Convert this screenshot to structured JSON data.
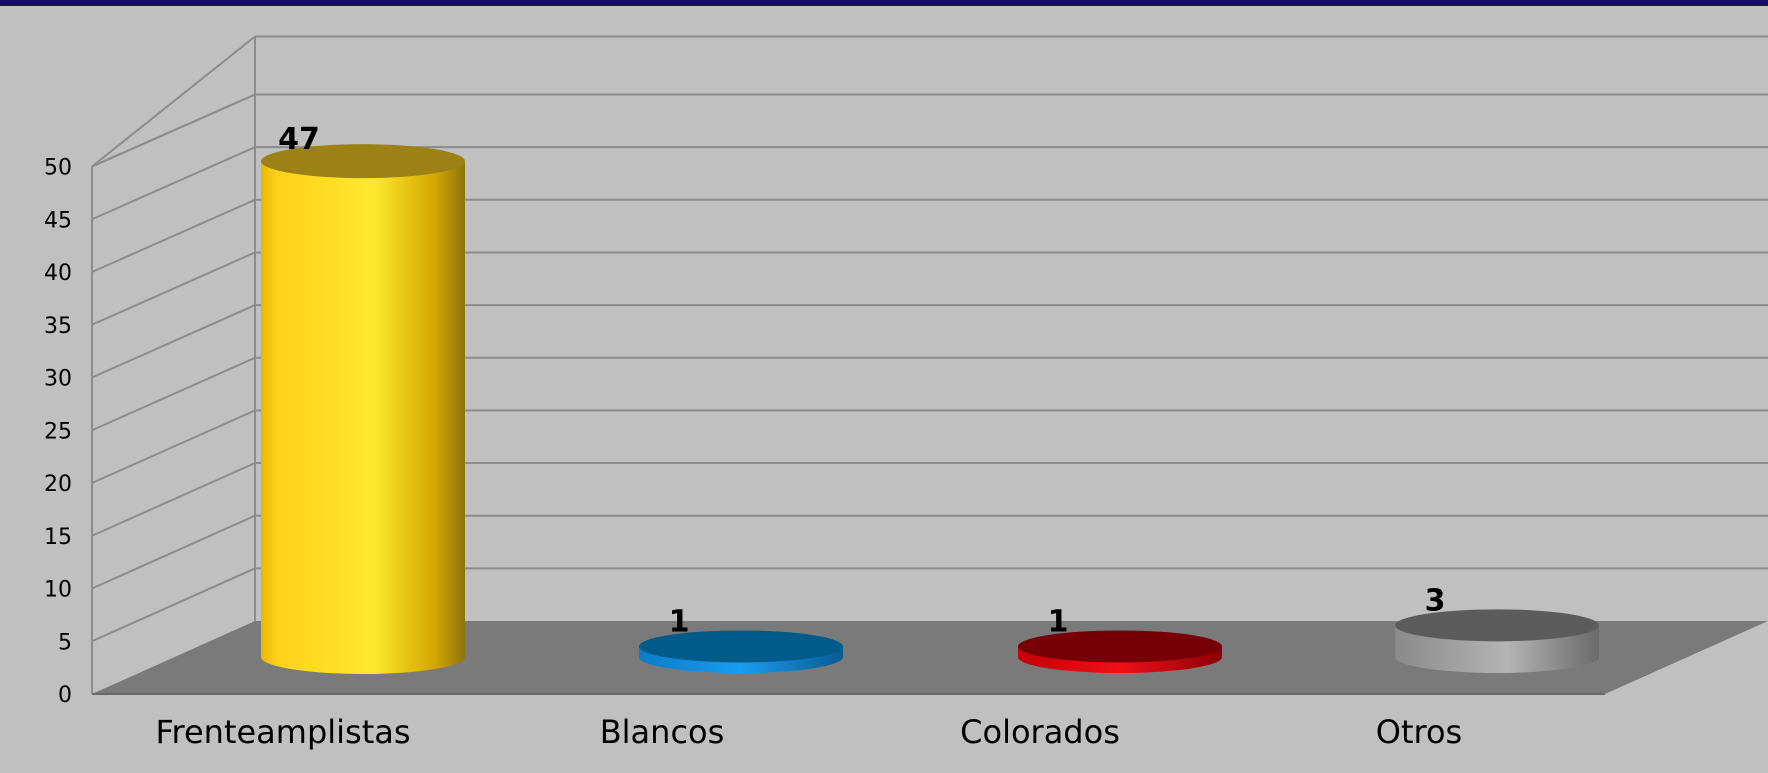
{
  "chart_data": {
    "type": "bar",
    "style": "3d-cylinder",
    "categories": [
      "Frenteamplistas",
      "Blancos",
      "Colorados",
      "Otros"
    ],
    "values": [
      47,
      1,
      1,
      3
    ],
    "data_labels": [
      "47",
      "1",
      "1",
      "3"
    ],
    "ylim": [
      0,
      50
    ],
    "yticks": [
      "0",
      "5",
      "10",
      "15",
      "20",
      "25",
      "30",
      "35",
      "40",
      "45",
      "50"
    ],
    "grid": true,
    "legend": "none",
    "title": "",
    "xlabel": "",
    "ylabel": "",
    "colors": {
      "Frenteamplistas": "#ffe11f",
      "Blancos": "#0f86d8",
      "Colorados": "#d4000b",
      "Otros": "#a6a6a6",
      "background": "#c0c0c0",
      "floor": "#7a7a7a",
      "grid": "#8c8c8c",
      "top_bar": "#1a0f5a"
    }
  }
}
